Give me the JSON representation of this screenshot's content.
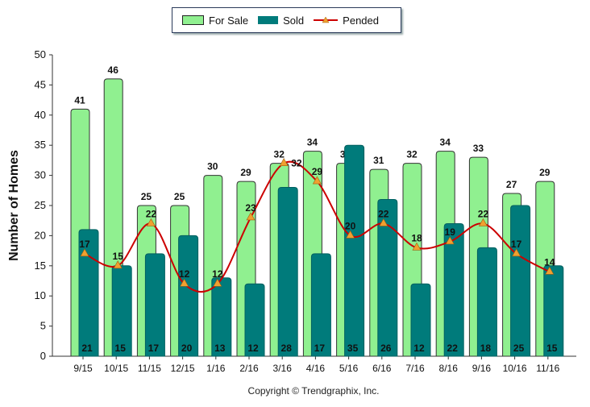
{
  "chart_data": {
    "type": "bar",
    "ylabel": "Number of Homes",
    "xlabel": "",
    "ylim": [
      0,
      50
    ],
    "yticks": [
      0,
      5,
      10,
      15,
      20,
      25,
      30,
      35,
      40,
      45,
      50
    ],
    "grid": false,
    "legend_position": "top",
    "categories": [
      "9/15",
      "10/15",
      "11/15",
      "12/15",
      "1/16",
      "2/16",
      "3/16",
      "4/16",
      "5/16",
      "6/16",
      "7/16",
      "8/16",
      "9/16",
      "10/16",
      "11/16"
    ],
    "series": [
      {
        "name": "For Sale",
        "type": "bar",
        "color": "#90f090",
        "values": [
          41,
          46,
          25,
          25,
          30,
          29,
          32,
          34,
          32,
          31,
          32,
          34,
          33,
          27,
          29
        ]
      },
      {
        "name": "Sold",
        "type": "bar",
        "color": "#007b7b",
        "values": [
          21,
          15,
          17,
          20,
          13,
          12,
          28,
          17,
          35,
          26,
          12,
          22,
          18,
          25,
          15
        ]
      },
      {
        "name": "Pended",
        "type": "line",
        "color": "#cc0000",
        "marker_color": "#f0a030",
        "values": [
          17,
          15,
          22,
          12,
          12,
          23,
          32,
          29,
          20,
          22,
          18,
          19,
          22,
          17,
          14
        ]
      }
    ]
  },
  "footer": {
    "copyright": "Copyright © Trendgraphix, Inc."
  }
}
